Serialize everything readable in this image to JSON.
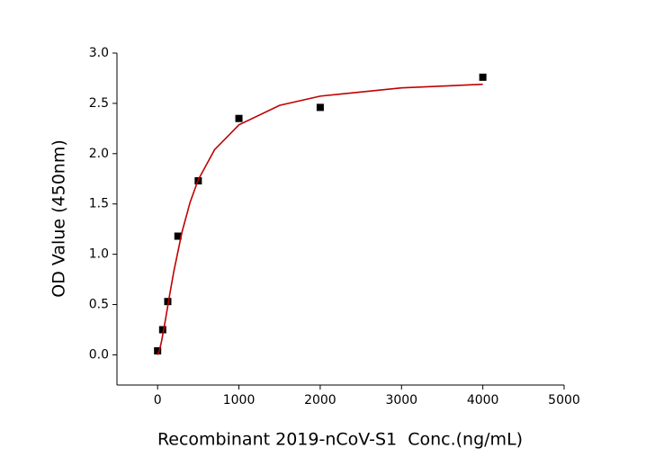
{
  "chart_data": {
    "type": "scatter",
    "x_label": "Recombinant 2019-nCoV-S1  Conc.(ng/mL)",
    "y_label": "OD Value (450nm)",
    "xlim": [
      -500,
      5000
    ],
    "xticks": [
      0,
      1000,
      2000,
      3000,
      4000,
      5000
    ],
    "ylim": [
      -0.3,
      3.0
    ],
    "yticks": [
      {
        "value": 0,
        "label": "0.0"
      },
      {
        "value": 0.5,
        "label": "0.5"
      },
      {
        "value": 1,
        "label": "1.0"
      },
      {
        "value": 1.5,
        "label": "1.5"
      },
      {
        "value": 2,
        "label": "2.0"
      },
      {
        "value": 2.5,
        "label": "2.5"
      },
      {
        "value": 3,
        "label": "3.0"
      }
    ],
    "grid": false,
    "series": [
      {
        "color": "#000000",
        "marker": "square",
        "x": [
          0,
          62.5,
          125,
          250,
          500,
          1000,
          2000,
          4000
        ],
        "values": [
          0.04,
          0.25,
          0.53,
          1.18,
          1.73,
          2.35,
          2.46,
          2.76
        ]
      },
      {
        "color": "#c00000",
        "line": true,
        "x": [
          0,
          25,
          50,
          100,
          150,
          200,
          300,
          400,
          500,
          700,
          1000,
          1500,
          2000,
          3000,
          4000
        ],
        "values": [
          0.0,
          0.052,
          0.141,
          0.366,
          0.605,
          0.832,
          1.221,
          1.518,
          1.741,
          2.039,
          2.286,
          2.48,
          2.572,
          2.654,
          2.69
        ]
      }
    ]
  }
}
